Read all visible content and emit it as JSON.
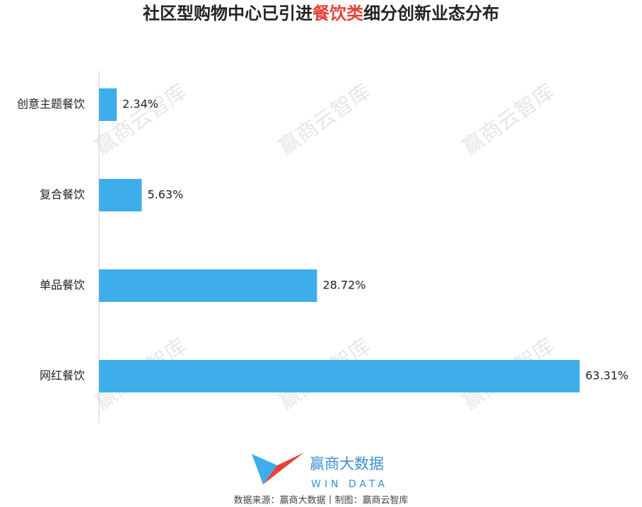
{
  "chart_data": {
    "type": "bar",
    "orientation": "horizontal",
    "title": {
      "prefix": "社区型购物中心已引进",
      "highlight": "餐饮类",
      "suffix": "细分创新业态分布"
    },
    "categories": [
      "创意主题餐饮",
      "复合餐饮",
      "单品餐饮",
      "网红餐饮"
    ],
    "values": [
      2.34,
      5.63,
      28.72,
      63.31
    ],
    "value_labels": [
      "2.34%",
      "5.63%",
      "28.72%",
      "63.31%"
    ],
    "color": "#3daee9",
    "highlight_color": "#e8413a",
    "xlim": [
      0,
      65
    ],
    "watermark": "赢商云智库",
    "logo": {
      "name": "赢商大数据",
      "sub": "WIN DATA"
    },
    "source": "数据来源：赢商大数据丨制图：赢商云智库"
  }
}
